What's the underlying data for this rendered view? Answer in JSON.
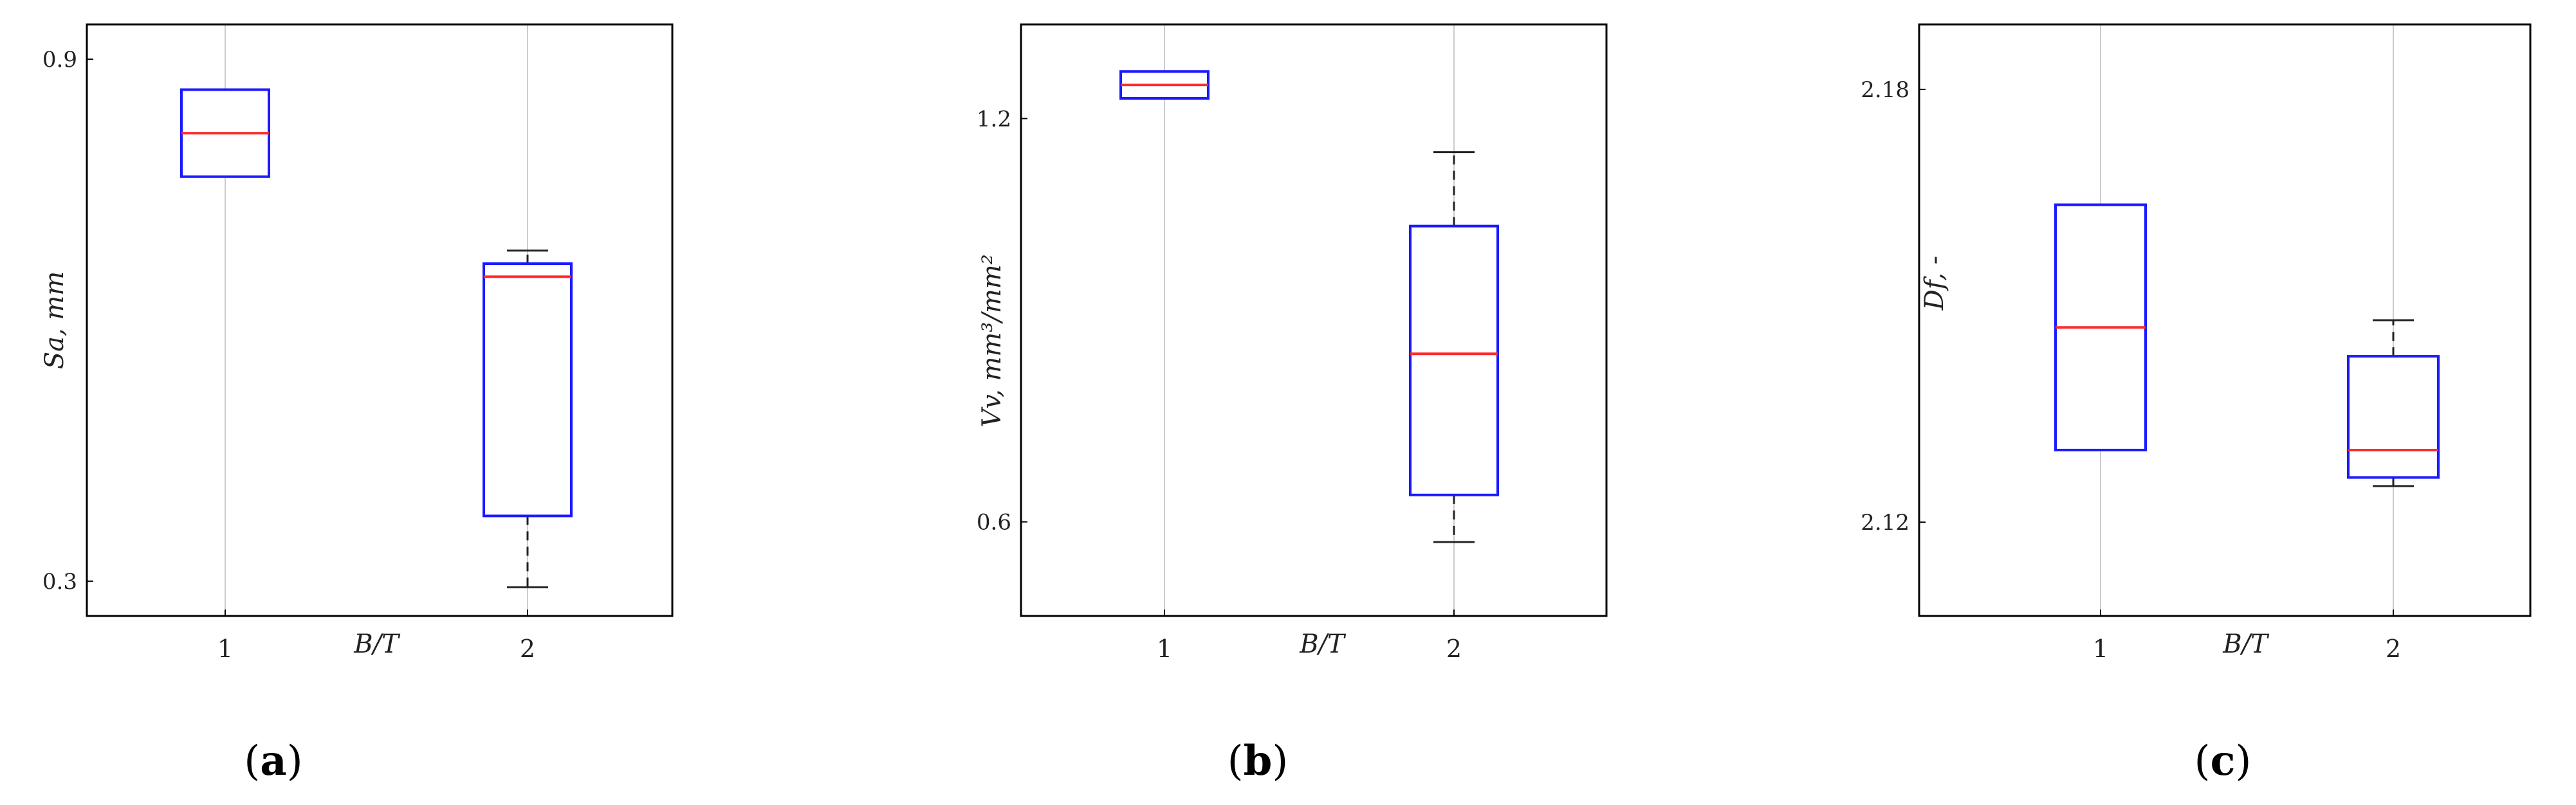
{
  "chart_data": [
    {
      "type": "box",
      "panel": "(a)",
      "caption_letter": "a",
      "ylabel": "Sa, mm",
      "xlabel": "B/T",
      "categories": [
        "1",
        "2"
      ],
      "yticks": [
        "0.9",
        "0.3"
      ],
      "ytick_values": [
        0.9,
        0.3
      ],
      "ylim": [
        0.26,
        0.94
      ],
      "boxes": [
        {
          "category": "1",
          "q1": 0.765,
          "median": 0.815,
          "q3": 0.865,
          "whisker_low": null,
          "whisker_high": null
        },
        {
          "category": "2",
          "q1": 0.375,
          "median": 0.65,
          "q3": 0.665,
          "whisker_low": 0.293,
          "whisker_high": 0.68
        }
      ],
      "grid": "vertical"
    },
    {
      "type": "box",
      "panel": "(b)",
      "caption_letter": "b",
      "ylabel": "Vv, mm³/mm²",
      "xlabel": "B/T",
      "categories": [
        "1",
        "2"
      ],
      "yticks": [
        "1.2",
        "0.6"
      ],
      "ytick_values": [
        1.2,
        0.6
      ],
      "ylim": [
        0.46,
        1.34
      ],
      "boxes": [
        {
          "category": "1",
          "q1": 1.23,
          "median": 1.25,
          "q3": 1.27,
          "whisker_low": null,
          "whisker_high": null
        },
        {
          "category": "2",
          "q1": 0.64,
          "median": 0.85,
          "q3": 1.04,
          "whisker_low": 0.57,
          "whisker_high": 1.15
        }
      ],
      "grid": "vertical"
    },
    {
      "type": "box",
      "panel": "(c)",
      "caption_letter": "c",
      "ylabel": "Df, -",
      "xlabel": "B/T",
      "categories": [
        "1",
        "2"
      ],
      "yticks": [
        "2.18",
        "2.12"
      ],
      "ytick_values": [
        2.18,
        2.12
      ],
      "ylim": [
        2.107,
        2.189
      ],
      "boxes": [
        {
          "category": "1",
          "q1": 2.13,
          "median": 2.147,
          "q3": 2.164,
          "whisker_low": null,
          "whisker_high": null
        },
        {
          "category": "2",
          "q1": 2.1262,
          "median": 2.13,
          "q3": 2.143,
          "whisker_low": 2.125,
          "whisker_high": 2.148
        }
      ],
      "grid": "vertical"
    }
  ],
  "colors": {
    "box": "#1a1aff",
    "median": "#ff2a2a",
    "whisker": "#222222",
    "axis": "#000000",
    "grid": "#cccccc"
  }
}
